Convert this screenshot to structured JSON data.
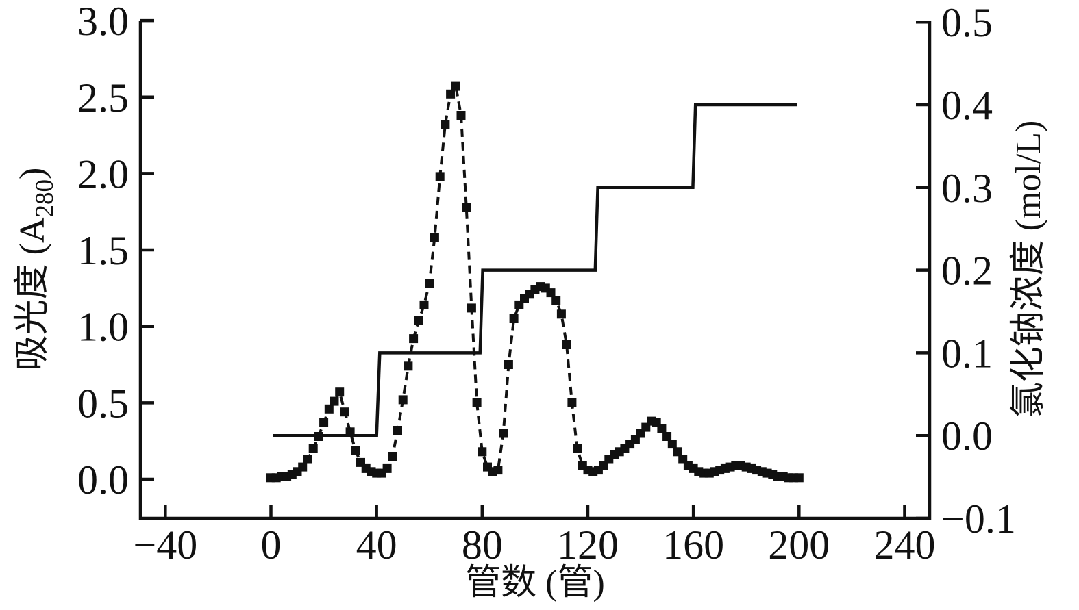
{
  "figure": {
    "background": "#ffffff",
    "ink_color": "#111111"
  },
  "chart_data": {
    "type": "line",
    "title": "",
    "grid": false,
    "legend": "none",
    "x_axis": {
      "label": "管数 (管)",
      "tick_values": [
        -40,
        0,
        40,
        80,
        120,
        160,
        200,
        240
      ],
      "tick_labels": [
        "−40",
        "0",
        "40",
        "80",
        "120",
        "160",
        "200",
        "240"
      ],
      "range": [
        -49.5,
        249.5
      ]
    },
    "left_y_axis": {
      "label_pre": "吸光度 (A",
      "label_sub": "280",
      "label_post": ")",
      "tick_values": [
        3.0,
        2.5,
        2.0,
        1.5,
        1.0,
        0.5,
        0.0
      ],
      "tick_labels": [
        "3.0",
        "2.5",
        "2.0",
        "1.5",
        "1.0",
        "0.5",
        "0.0"
      ],
      "range": [
        -0.26,
        3.0
      ]
    },
    "right_y_axis": {
      "label": "氯化钠浓度 (mol/L)",
      "tick_values": [
        0.5,
        0.4,
        0.3,
        0.2,
        0.1,
        0.0,
        -0.1
      ],
      "tick_labels": [
        "0.5",
        "0.4",
        "0.3",
        "0.2",
        "0.1",
        "0.0",
        "−0.1"
      ],
      "range": [
        -0.1,
        0.5
      ]
    },
    "series": [
      {
        "name": "absorbance-A280",
        "axis": "left",
        "style": "dashed-line-square-markers",
        "color": "#111111",
        "points": [
          [
            0,
            0.01
          ],
          [
            2,
            0.01
          ],
          [
            4,
            0.02
          ],
          [
            6,
            0.02
          ],
          [
            8,
            0.03
          ],
          [
            10,
            0.05
          ],
          [
            12,
            0.08
          ],
          [
            14,
            0.13
          ],
          [
            16,
            0.2
          ],
          [
            18,
            0.28
          ],
          [
            20,
            0.37
          ],
          [
            22,
            0.46
          ],
          [
            24,
            0.51
          ],
          [
            26,
            0.57
          ],
          [
            28,
            0.44
          ],
          [
            30,
            0.31
          ],
          [
            32,
            0.19
          ],
          [
            34,
            0.11
          ],
          [
            36,
            0.07
          ],
          [
            38,
            0.05
          ],
          [
            40,
            0.04
          ],
          [
            42,
            0.04
          ],
          [
            44,
            0.07
          ],
          [
            46,
            0.15
          ],
          [
            48,
            0.32
          ],
          [
            50,
            0.52
          ],
          [
            52,
            0.74
          ],
          [
            54,
            0.92
          ],
          [
            56,
            1.04
          ],
          [
            58,
            1.14
          ],
          [
            60,
            1.28
          ],
          [
            62,
            1.58
          ],
          [
            64,
            1.98
          ],
          [
            66,
            2.32
          ],
          [
            68,
            2.52
          ],
          [
            70,
            2.57
          ],
          [
            72,
            2.38
          ],
          [
            74,
            1.78
          ],
          [
            76,
            1.12
          ],
          [
            78,
            0.5
          ],
          [
            80,
            0.18
          ],
          [
            82,
            0.08
          ],
          [
            84,
            0.05
          ],
          [
            86,
            0.06
          ],
          [
            88,
            0.3
          ],
          [
            90,
            0.75
          ],
          [
            92,
            1.05
          ],
          [
            94,
            1.14
          ],
          [
            96,
            1.18
          ],
          [
            98,
            1.21
          ],
          [
            100,
            1.24
          ],
          [
            102,
            1.26
          ],
          [
            104,
            1.25
          ],
          [
            106,
            1.22
          ],
          [
            108,
            1.17
          ],
          [
            110,
            1.08
          ],
          [
            112,
            0.88
          ],
          [
            114,
            0.5
          ],
          [
            116,
            0.2
          ],
          [
            118,
            0.09
          ],
          [
            120,
            0.06
          ],
          [
            122,
            0.05
          ],
          [
            124,
            0.06
          ],
          [
            126,
            0.09
          ],
          [
            128,
            0.13
          ],
          [
            130,
            0.16
          ],
          [
            132,
            0.18
          ],
          [
            134,
            0.2
          ],
          [
            136,
            0.23
          ],
          [
            138,
            0.26
          ],
          [
            140,
            0.3
          ],
          [
            142,
            0.34
          ],
          [
            144,
            0.38
          ],
          [
            146,
            0.37
          ],
          [
            148,
            0.33
          ],
          [
            150,
            0.28
          ],
          [
            152,
            0.23
          ],
          [
            154,
            0.18
          ],
          [
            156,
            0.13
          ],
          [
            158,
            0.09
          ],
          [
            160,
            0.07
          ],
          [
            162,
            0.05
          ],
          [
            164,
            0.04
          ],
          [
            166,
            0.04
          ],
          [
            168,
            0.05
          ],
          [
            170,
            0.06
          ],
          [
            172,
            0.07
          ],
          [
            174,
            0.08
          ],
          [
            176,
            0.09
          ],
          [
            178,
            0.09
          ],
          [
            180,
            0.08
          ],
          [
            182,
            0.07
          ],
          [
            184,
            0.06
          ],
          [
            186,
            0.05
          ],
          [
            188,
            0.04
          ],
          [
            190,
            0.03
          ],
          [
            192,
            0.02
          ],
          [
            194,
            0.02
          ],
          [
            196,
            0.01
          ],
          [
            198,
            0.01
          ],
          [
            200,
            0.01
          ]
        ]
      },
      {
        "name": "nacl-concentration-step",
        "axis": "right",
        "style": "solid-step-line",
        "color": "#111111",
        "points": [
          [
            0.8,
            0.0
          ],
          [
            40.0,
            0.0
          ],
          [
            41.2,
            0.1
          ],
          [
            79.2,
            0.1
          ],
          [
            80.2,
            0.2
          ],
          [
            122.8,
            0.2
          ],
          [
            123.8,
            0.3
          ],
          [
            159.8,
            0.3
          ],
          [
            160.8,
            0.4
          ],
          [
            199.3,
            0.4
          ]
        ]
      }
    ]
  }
}
